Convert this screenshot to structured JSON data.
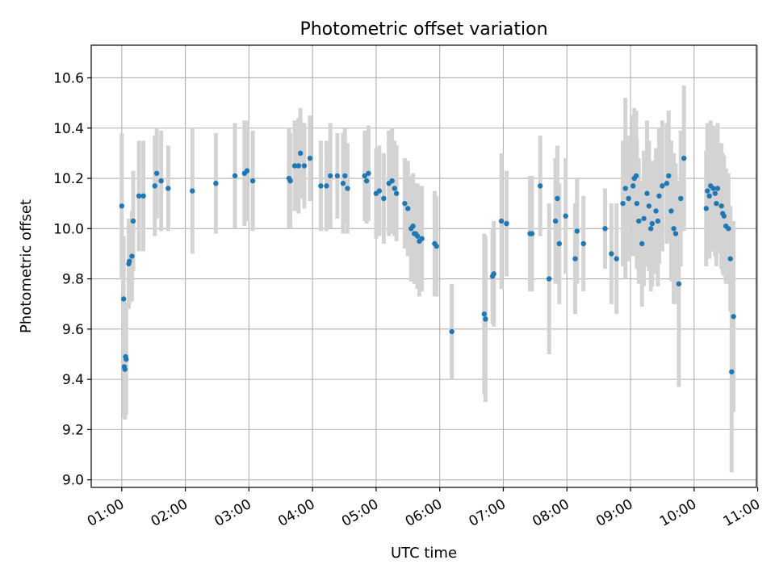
{
  "chart_data": {
    "type": "scatter",
    "title": "Photometric offset variation",
    "xlabel": "UTC time",
    "ylabel": "Photometric offset",
    "xlim": [
      0.52,
      10.98
    ],
    "ylim": [
      8.97,
      10.73
    ],
    "grid": true,
    "x_ticks": [
      1,
      2,
      3,
      4,
      5,
      6,
      7,
      8,
      9,
      10,
      11
    ],
    "x_tick_labels": [
      "01:00",
      "02:00",
      "03:00",
      "04:00",
      "05:00",
      "06:00",
      "07:00",
      "08:00",
      "09:00",
      "10:00",
      "11:00"
    ],
    "y_ticks": [
      9.0,
      9.2,
      9.4,
      9.6,
      9.8,
      10.0,
      10.2,
      10.4,
      10.6
    ],
    "y_tick_labels": [
      "9.0",
      "9.2",
      "9.4",
      "9.6",
      "9.8",
      "10.0",
      "10.2",
      "10.4",
      "10.6"
    ],
    "point_color": "#1f77b4",
    "errorbar_color": "#d3d3d3",
    "series": [
      {
        "name": "Photometric offset",
        "points": [
          [
            1.0,
            10.09,
            0.29
          ],
          [
            1.03,
            9.72,
            0.25
          ],
          [
            1.04,
            9.45,
            0.2
          ],
          [
            1.05,
            9.44,
            0.2
          ],
          [
            1.06,
            9.49,
            0.22
          ],
          [
            1.07,
            9.48,
            0.22
          ],
          [
            1.11,
            9.86,
            0.18
          ],
          [
            1.12,
            9.87,
            0.17
          ],
          [
            1.16,
            9.89,
            0.18
          ],
          [
            1.18,
            10.03,
            0.2
          ],
          [
            1.27,
            10.13,
            0.22
          ],
          [
            1.34,
            10.13,
            0.22
          ],
          [
            1.52,
            10.17,
            0.2
          ],
          [
            1.55,
            10.22,
            0.18
          ],
          [
            1.62,
            10.19,
            0.2
          ],
          [
            1.73,
            10.16,
            0.17
          ],
          [
            2.11,
            10.15,
            0.25
          ],
          [
            2.48,
            10.18,
            0.2
          ],
          [
            2.78,
            10.21,
            0.21
          ],
          [
            2.93,
            10.22,
            0.21
          ],
          [
            2.97,
            10.23,
            0.2
          ],
          [
            3.06,
            10.19,
            0.2
          ],
          [
            3.63,
            10.2,
            0.2
          ],
          [
            3.65,
            10.19,
            0.19
          ],
          [
            3.72,
            10.25,
            0.18
          ],
          [
            3.78,
            10.25,
            0.19
          ],
          [
            3.81,
            10.3,
            0.18
          ],
          [
            3.87,
            10.25,
            0.17
          ],
          [
            3.96,
            10.28,
            0.17
          ],
          [
            4.13,
            10.17,
            0.18
          ],
          [
            4.22,
            10.17,
            0.18
          ],
          [
            4.28,
            10.21,
            0.21
          ],
          [
            4.39,
            10.21,
            0.17
          ],
          [
            4.51,
            10.21,
            0.19
          ],
          [
            4.55,
            10.16,
            0.18
          ],
          [
            4.48,
            10.18,
            0.2
          ],
          [
            4.82,
            10.21,
            0.18
          ],
          [
            4.85,
            10.19,
            0.17
          ],
          [
            4.88,
            10.22,
            0.19
          ],
          [
            5.0,
            10.14,
            0.18
          ],
          [
            5.05,
            10.15,
            0.18
          ],
          [
            5.12,
            10.12,
            0.18
          ],
          [
            5.2,
            10.18,
            0.21
          ],
          [
            5.25,
            10.19,
            0.21
          ],
          [
            5.29,
            10.16,
            0.19
          ],
          [
            5.32,
            10.14,
            0.19
          ],
          [
            5.45,
            10.1,
            0.18
          ],
          [
            5.5,
            10.08,
            0.19
          ],
          [
            5.55,
            10.0,
            0.21
          ],
          [
            5.58,
            10.01,
            0.21
          ],
          [
            5.6,
            9.98,
            0.2
          ],
          [
            5.62,
            9.98,
            0.2
          ],
          [
            5.65,
            9.97,
            0.21
          ],
          [
            5.68,
            9.95,
            0.22
          ],
          [
            5.72,
            9.96,
            0.21
          ],
          [
            5.92,
            9.94,
            0.21
          ],
          [
            5.95,
            9.93,
            0.2
          ],
          [
            6.19,
            9.59,
            0.19
          ],
          [
            6.7,
            9.66,
            0.32
          ],
          [
            6.72,
            9.64,
            0.33
          ],
          [
            6.83,
            9.81,
            0.19
          ],
          [
            6.85,
            9.82,
            0.21
          ],
          [
            6.97,
            10.03,
            0.27
          ],
          [
            7.05,
            10.02,
            0.21
          ],
          [
            7.42,
            9.98,
            0.23
          ],
          [
            7.45,
            9.98,
            0.23
          ],
          [
            7.58,
            10.17,
            0.2
          ],
          [
            7.72,
            9.8,
            0.3
          ],
          [
            7.82,
            10.03,
            0.25
          ],
          [
            7.85,
            10.12,
            0.21
          ],
          [
            7.88,
            9.94,
            0.24
          ],
          [
            7.98,
            10.05,
            0.23
          ],
          [
            8.13,
            9.88,
            0.22
          ],
          [
            8.16,
            9.99,
            0.21
          ],
          [
            8.26,
            9.94,
            0.19
          ],
          [
            8.6,
            10.0,
            0.16
          ],
          [
            8.7,
            9.9,
            0.2
          ],
          [
            8.78,
            9.88,
            0.22
          ],
          [
            8.88,
            10.1,
            0.25
          ],
          [
            8.92,
            10.16,
            0.36
          ],
          [
            8.97,
            10.12,
            0.25
          ],
          [
            9.04,
            10.17,
            0.28
          ],
          [
            9.06,
            10.2,
            0.28
          ],
          [
            9.09,
            10.21,
            0.26
          ],
          [
            9.1,
            10.1,
            0.26
          ],
          [
            9.13,
            10.03,
            0.25
          ],
          [
            9.18,
            9.94,
            0.25
          ],
          [
            9.21,
            10.04,
            0.27
          ],
          [
            9.26,
            10.14,
            0.29
          ],
          [
            9.29,
            10.09,
            0.26
          ],
          [
            9.32,
            10.0,
            0.25
          ],
          [
            9.34,
            10.02,
            0.25
          ],
          [
            9.4,
            10.07,
            0.25
          ],
          [
            9.43,
            10.03,
            0.26
          ],
          [
            9.45,
            10.13,
            0.27
          ],
          [
            9.5,
            10.17,
            0.26
          ],
          [
            9.57,
            10.18,
            0.24
          ],
          [
            9.6,
            10.21,
            0.26
          ],
          [
            9.64,
            10.07,
            0.28
          ],
          [
            9.68,
            10.0,
            0.3
          ],
          [
            9.71,
            9.98,
            0.28
          ],
          [
            9.76,
            9.78,
            0.41
          ],
          [
            9.79,
            10.12,
            0.27
          ],
          [
            9.84,
            10.28,
            0.29
          ],
          [
            10.19,
            10.08,
            0.23
          ],
          [
            10.21,
            10.15,
            0.27
          ],
          [
            10.24,
            10.13,
            0.25
          ],
          [
            10.26,
            10.17,
            0.26
          ],
          [
            10.3,
            10.16,
            0.25
          ],
          [
            10.33,
            10.14,
            0.25
          ],
          [
            10.35,
            10.1,
            0.25
          ],
          [
            10.37,
            10.16,
            0.26
          ],
          [
            10.43,
            10.09,
            0.25
          ],
          [
            10.45,
            10.06,
            0.24
          ],
          [
            10.47,
            10.05,
            0.24
          ],
          [
            10.5,
            10.01,
            0.23
          ],
          [
            10.54,
            10.0,
            0.22
          ],
          [
            10.57,
            9.88,
            0.21
          ],
          [
            10.59,
            9.43,
            0.4
          ],
          [
            10.62,
            9.65,
            0.38
          ]
        ]
      }
    ]
  }
}
